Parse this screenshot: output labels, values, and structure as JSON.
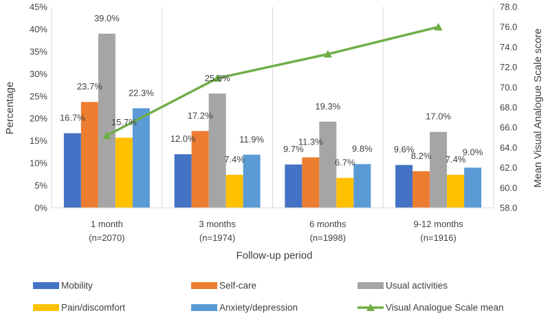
{
  "chart_data": {
    "type": "bar",
    "categories": [
      [
        "1 month",
        "(n=2070)"
      ],
      [
        "3 months",
        "(n=1974)"
      ],
      [
        "6 months",
        "(n=1998)"
      ],
      [
        "9-12 months",
        "(n=1916)"
      ]
    ],
    "xlabel": "Follow-up period",
    "ylabel": "Percentage",
    "y2label": "Mean Visual Analogue Scale score",
    "ylim": [
      0,
      45
    ],
    "y_ticks": [
      "0%",
      "5%",
      "10%",
      "15%",
      "20%",
      "25%",
      "30%",
      "35%",
      "40%",
      "45%"
    ],
    "y2lim": [
      58,
      78
    ],
    "y2_ticks": [
      "58.0",
      "60.0",
      "62.0",
      "64.0",
      "66.0",
      "68.0",
      "70.0",
      "72.0",
      "74.0",
      "76.0",
      "78.0"
    ],
    "grid": "vertical category separators",
    "legend_position": "bottom",
    "series": [
      {
        "name": "Mobility",
        "type": "bar",
        "axis": "left",
        "color": "#4472C4",
        "values": [
          16.7,
          12.0,
          9.7,
          9.6
        ],
        "labels": [
          "16.7%",
          "12.0%",
          "9.7%",
          "9.6%"
        ]
      },
      {
        "name": "Self-care",
        "type": "bar",
        "axis": "left",
        "color": "#ED7D31",
        "values": [
          23.7,
          17.2,
          11.3,
          8.2
        ],
        "labels": [
          "23.7%",
          "17.2%",
          "11.3%",
          "8.2%"
        ]
      },
      {
        "name": "Usual activities",
        "type": "bar",
        "axis": "left",
        "color": "#A5A5A5",
        "values": [
          39.0,
          25.6,
          19.3,
          17.0
        ],
        "labels": [
          "39.0%",
          "25.6%",
          "19.3%",
          "17.0%"
        ]
      },
      {
        "name": "Pain/discomfort",
        "type": "bar",
        "axis": "left",
        "color": "#FFC000",
        "values": [
          15.7,
          7.4,
          6.7,
          7.4
        ],
        "labels": [
          "15.7%",
          "7.4%",
          "6.7%",
          "7.4%"
        ]
      },
      {
        "name": "Anxiety/depression",
        "type": "bar",
        "axis": "left",
        "color": "#5B9BD5",
        "values": [
          22.3,
          11.9,
          9.8,
          9.0
        ],
        "labels": [
          "22.3%",
          "11.9%",
          "9.8%",
          "9.0%"
        ]
      },
      {
        "name": "Visual Analogue Scale mean",
        "type": "line",
        "axis": "right",
        "color": "#70AD47",
        "marker": "triangle",
        "values": [
          65.2,
          70.9,
          73.3,
          76.0
        ]
      }
    ]
  }
}
